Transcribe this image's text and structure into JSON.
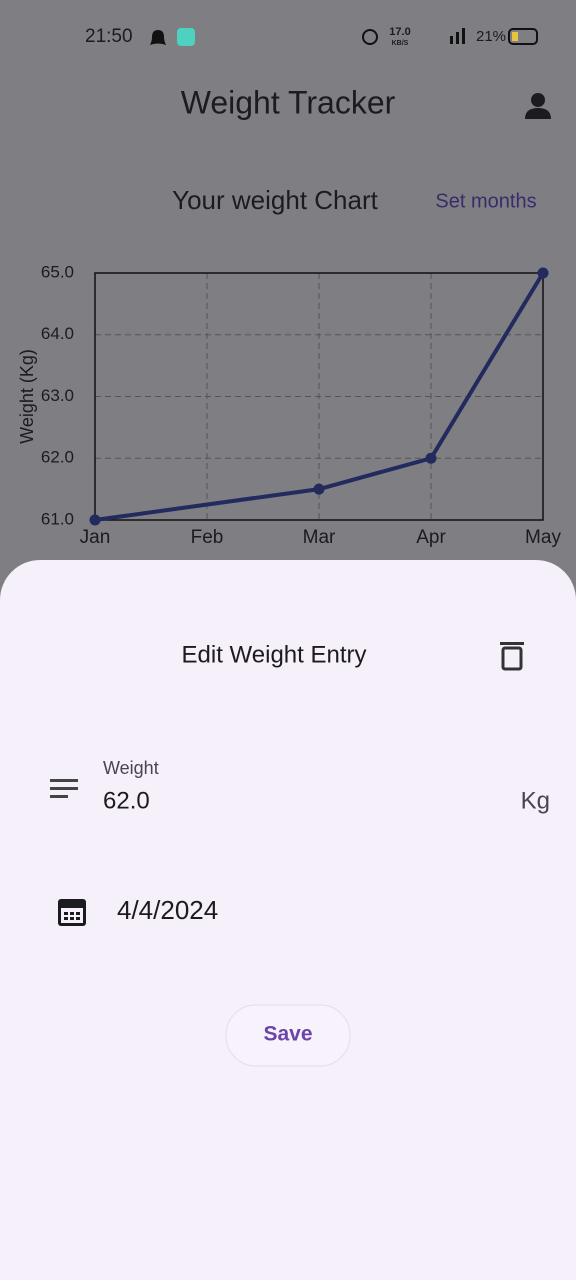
{
  "status_bar": {
    "time": "21:50",
    "speed": "17.0",
    "speed_unit": "KB/S",
    "battery": "21%"
  },
  "app_bar": {
    "title": "Weight Tracker"
  },
  "chart_header": {
    "title": "Your weight Chart",
    "action": "Set months"
  },
  "chart_data": {
    "type": "line",
    "y_label": "Weight (Kg)",
    "x": [
      1,
      3,
      4,
      5
    ],
    "values": [
      61.0,
      61.5,
      62.0,
      65.0
    ],
    "color": "#222a5e",
    "xlim": [
      1,
      5
    ],
    "xticks": [
      {
        "value": 1,
        "label": "Jan"
      },
      {
        "value": 2,
        "label": "Feb"
      },
      {
        "value": 3,
        "label": "Mar"
      },
      {
        "value": 4,
        "label": "Apr"
      },
      {
        "value": 5,
        "label": "May"
      }
    ],
    "ylim": [
      61,
      65
    ],
    "yticks": [
      {
        "value": 61,
        "label": "61.0"
      },
      {
        "value": 62,
        "label": "62.0"
      },
      {
        "value": 63,
        "label": "63.0"
      },
      {
        "value": 64,
        "label": "64.0"
      },
      {
        "value": 65,
        "label": "65.0"
      }
    ],
    "grid": true
  },
  "sheet": {
    "title": "Edit Weight Entry",
    "weight_label": "Weight",
    "weight_value": "62.0",
    "unit": "Kg",
    "date": "4/4/2024",
    "save": "Save"
  }
}
